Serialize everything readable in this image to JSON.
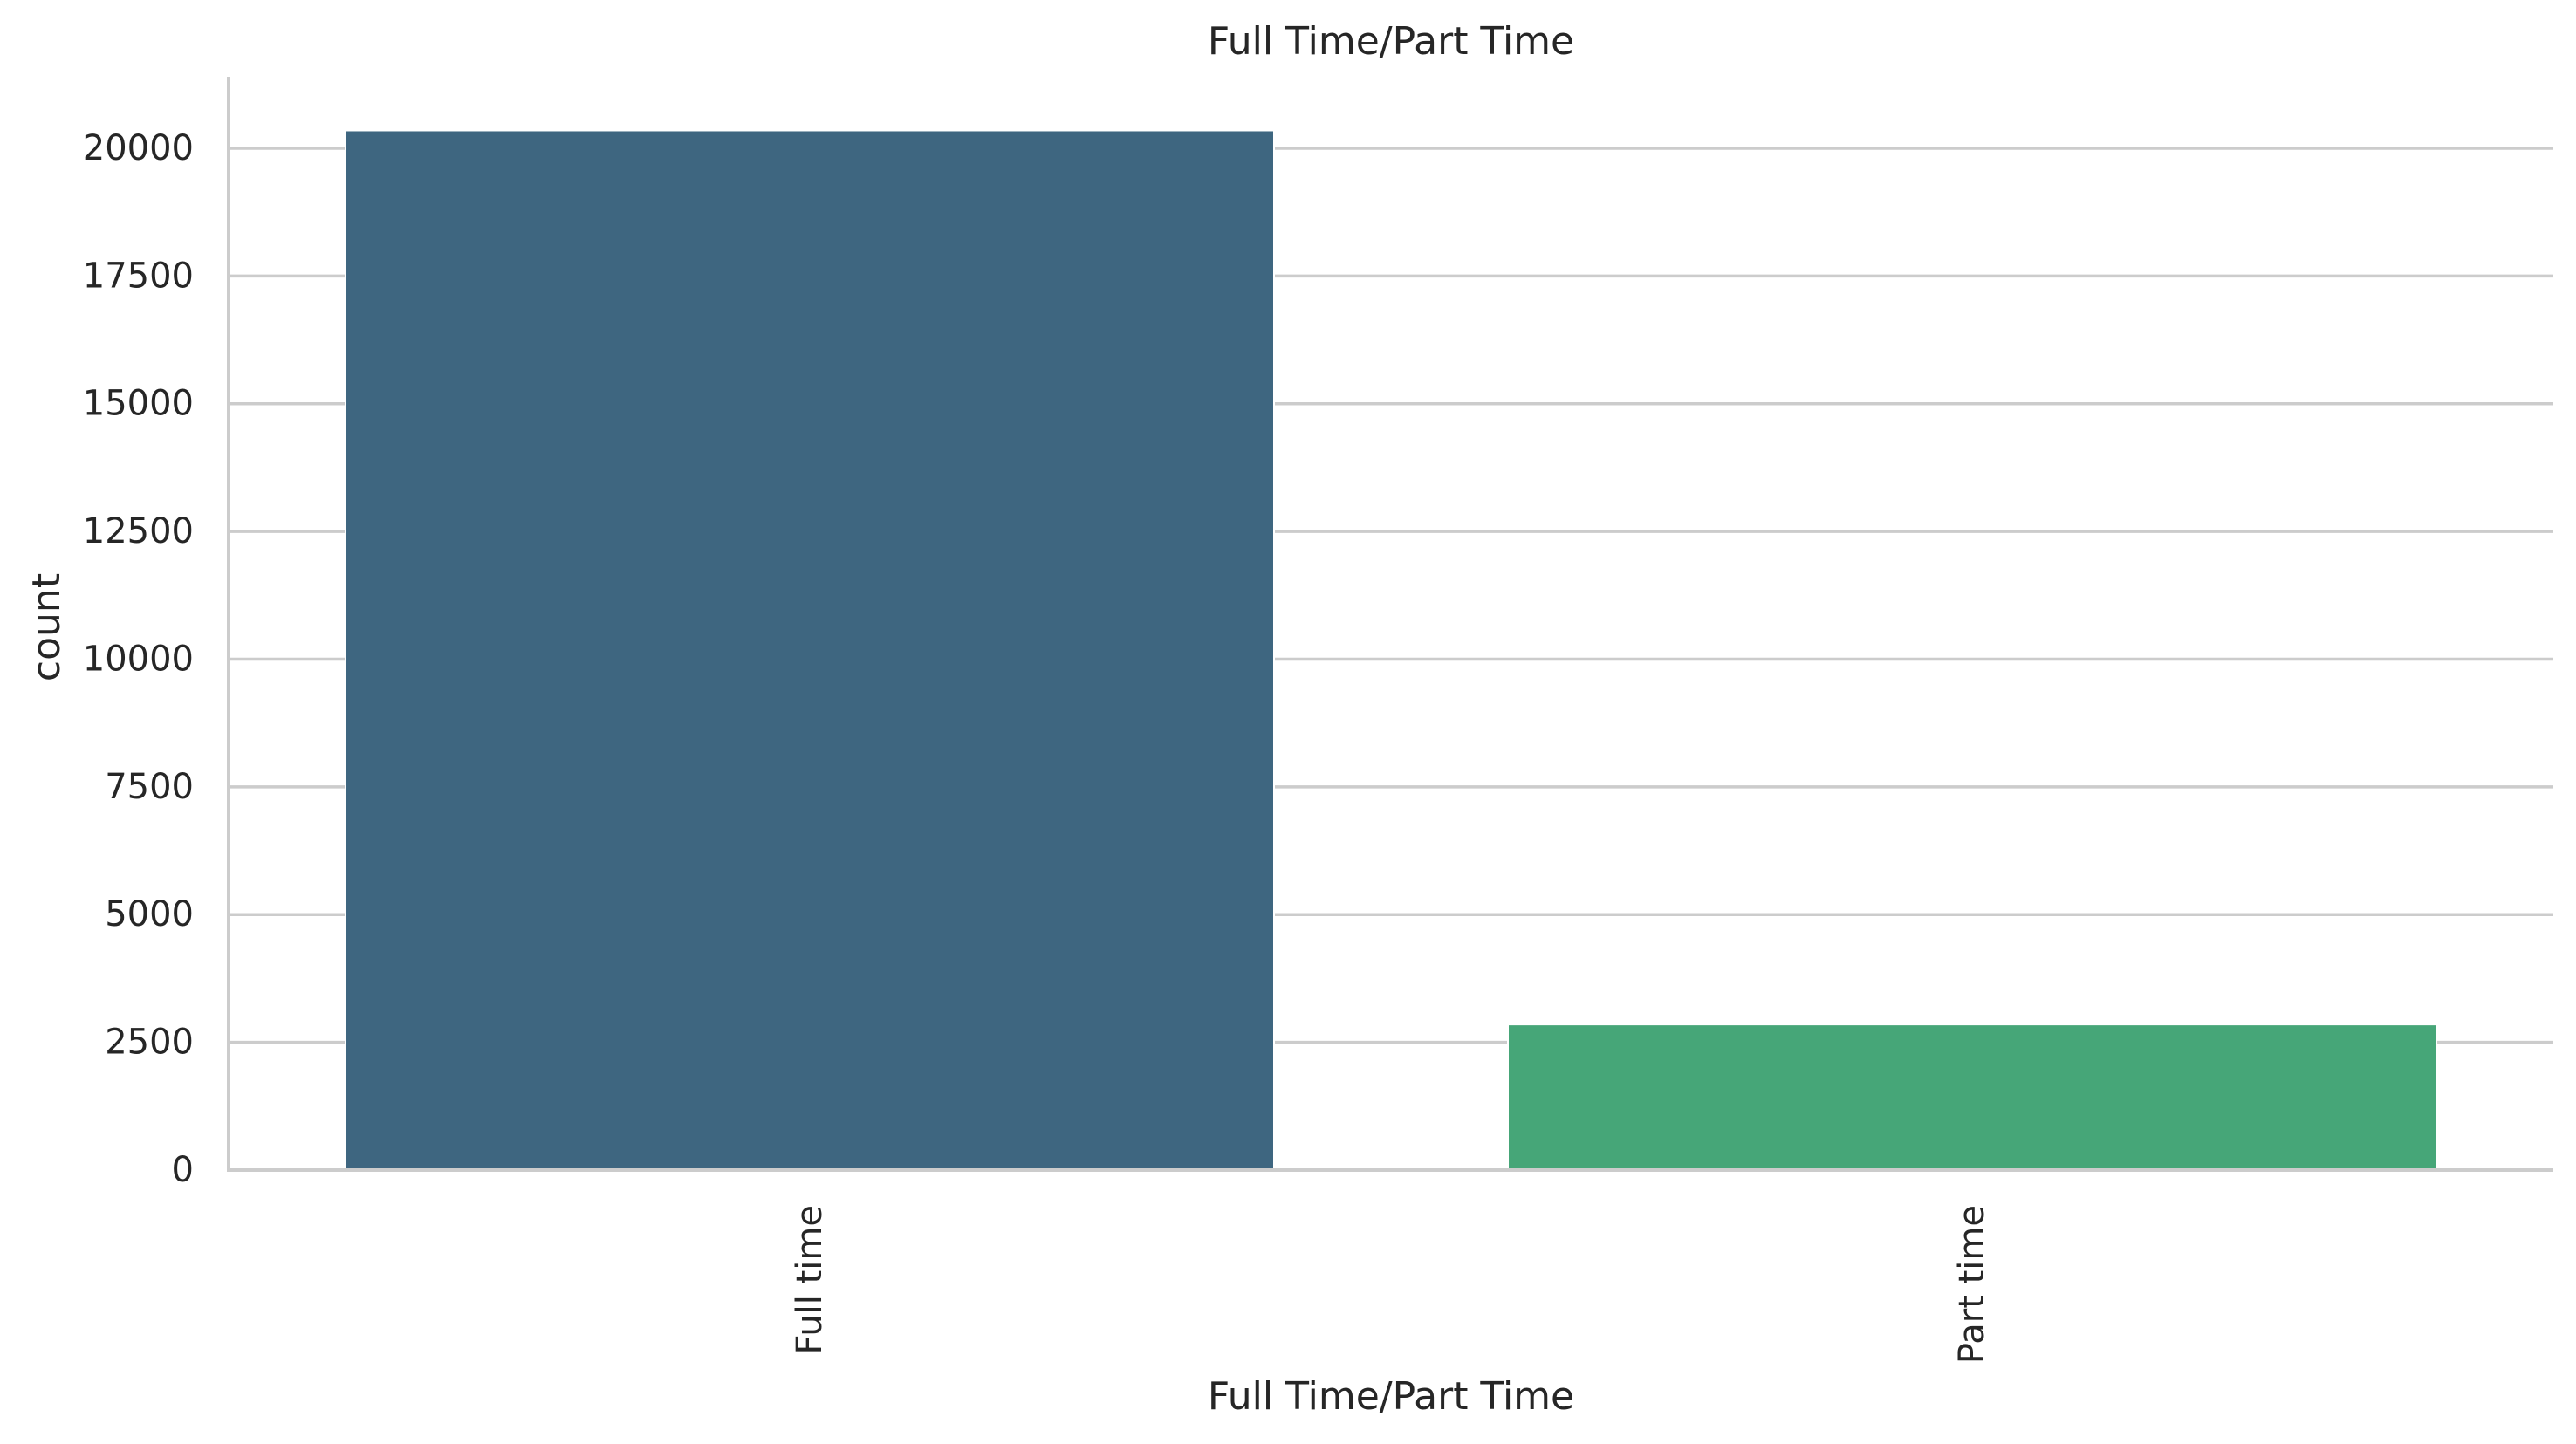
{
  "chart_data": {
    "type": "bar",
    "title": "Full Time/Part Time",
    "xlabel": "Full Time/Part Time",
    "ylabel": "count",
    "categories": [
      "Full time",
      "Part time"
    ],
    "values": [
      20350,
      2850
    ],
    "ylim": [
      0,
      21400
    ],
    "yticks": [
      0,
      2500,
      5000,
      7500,
      10000,
      12500,
      15000,
      17500,
      20000
    ],
    "grid": "horizontal",
    "bar_colors": [
      "#3e6680",
      "#46a678"
    ],
    "grid_color": "#cccccc",
    "axis_color": "#cccccc",
    "text_color": "#262626",
    "x_tick_rotation": "vertical"
  }
}
